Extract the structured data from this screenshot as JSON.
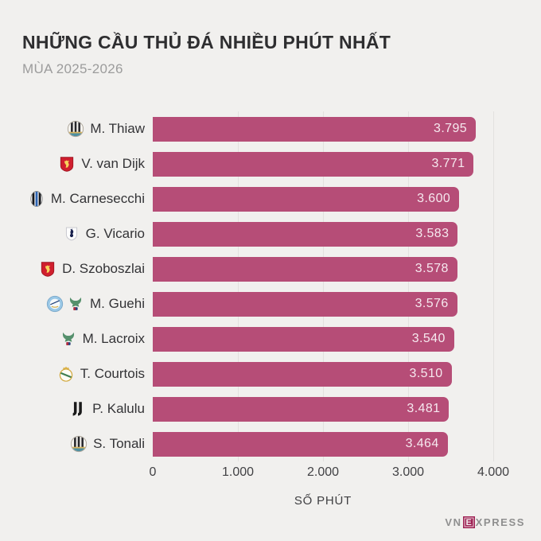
{
  "header": {
    "title": "NHỮNG CẦU THỦ ĐÁ NHIỀU PHÚT NHẤT",
    "subtitle": "MÙA 2025-2026"
  },
  "chart_data": {
    "type": "bar",
    "orientation": "horizontal",
    "title": "NHỮNG CẦU THỦ ĐÁ NHIỀU PHÚT NHẤT",
    "subtitle": "MÙA 2025-2026",
    "xlabel": "SỐ PHÚT",
    "xlim": [
      0,
      4000
    ],
    "xticks": [
      "0",
      "1.000",
      "2.000",
      "3.000",
      "4.000"
    ],
    "grid": true,
    "legend": false,
    "bar_color": "#b64d77",
    "value_label_color": "#f6e9ef",
    "background_color": "#f1f0ee",
    "categories": [
      "M. Thiaw",
      "V. van Dijk",
      "M. Carnesecchi",
      "G. Vicario",
      "D. Szoboszlai",
      "M. Guehi",
      "M. Lacroix",
      "T. Courtois",
      "P. Kalulu",
      "S. Tonali"
    ],
    "values": [
      3795,
      3771,
      3600,
      3583,
      3578,
      3576,
      3540,
      3510,
      3481,
      3464
    ],
    "value_labels": [
      "3.795",
      "3.771",
      "3.600",
      "3.583",
      "3.578",
      "3.576",
      "3.540",
      "3.510",
      "3.481",
      "3.464"
    ],
    "players": [
      {
        "name": "M. Thiaw",
        "value": 3795,
        "value_label": "3.795",
        "badges": [
          "newcastle-badge"
        ]
      },
      {
        "name": "V. van Dijk",
        "value": 3771,
        "value_label": "3.771",
        "badges": [
          "liverpool-badge"
        ]
      },
      {
        "name": "M. Carnesecchi",
        "value": 3600,
        "value_label": "3.600",
        "badges": [
          "atalanta-badge"
        ]
      },
      {
        "name": "G. Vicario",
        "value": 3583,
        "value_label": "3.583",
        "badges": [
          "tottenham-badge"
        ]
      },
      {
        "name": "D. Szoboszlai",
        "value": 3578,
        "value_label": "3.578",
        "badges": [
          "liverpool-badge"
        ]
      },
      {
        "name": "M. Guehi",
        "value": 3576,
        "value_label": "3.576",
        "badges": [
          "man-city-badge",
          "crystal-palace-badge"
        ]
      },
      {
        "name": "M. Lacroix",
        "value": 3540,
        "value_label": "3.540",
        "badges": [
          "crystal-palace-badge"
        ]
      },
      {
        "name": "T. Courtois",
        "value": 3510,
        "value_label": "3.510",
        "badges": [
          "real-madrid-badge"
        ]
      },
      {
        "name": "P. Kalulu",
        "value": 3481,
        "value_label": "3.481",
        "badges": [
          "juventus-badge"
        ]
      },
      {
        "name": "S. Tonali",
        "value": 3464,
        "value_label": "3.464",
        "badges": [
          "newcastle-badge"
        ]
      }
    ]
  },
  "footer": {
    "logo_prefix": "VN",
    "logo_boxed_letter": "E",
    "logo_suffix": "XPRESS",
    "logo_accent_color": "#9e2053"
  }
}
